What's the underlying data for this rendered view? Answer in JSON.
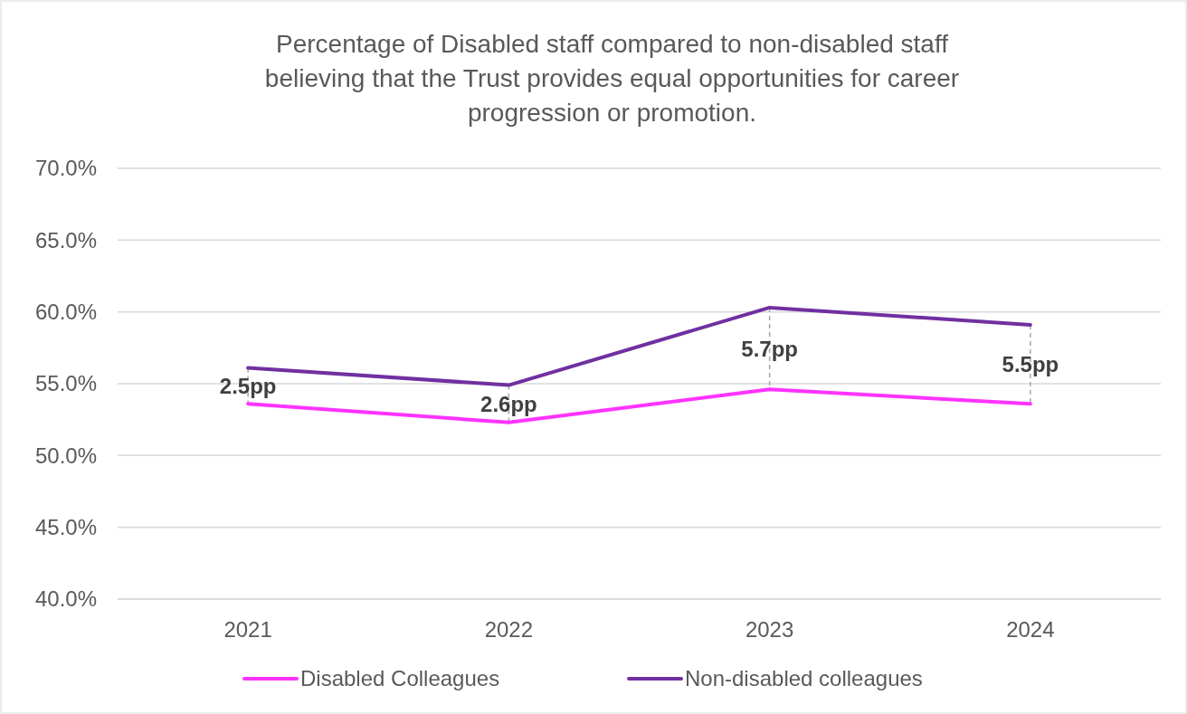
{
  "chart_data": {
    "type": "line",
    "title": "Percentage of Disabled staff compared to non-disabled staff believing that the Trust provides equal opportunities for career progression or promotion.",
    "categories": [
      "2021",
      "2022",
      "2023",
      "2024"
    ],
    "series": [
      {
        "name": "Disabled Colleagues",
        "color": "#ff33ff",
        "values": [
          53.6,
          52.3,
          54.6,
          53.6
        ]
      },
      {
        "name": "Non-disabled colleagues",
        "color": "#7030a0",
        "values": [
          56.1,
          54.9,
          60.3,
          59.1
        ]
      }
    ],
    "ylim": [
      40,
      70
    ],
    "yticks": [
      {
        "value": 40,
        "label": "40.0%"
      },
      {
        "value": 45,
        "label": "45.0%"
      },
      {
        "value": 50,
        "label": "50.0%"
      },
      {
        "value": 55,
        "label": "55.0%"
      },
      {
        "value": 60,
        "label": "60.0%"
      },
      {
        "value": 65,
        "label": "65.0%"
      },
      {
        "value": 70,
        "label": "70.0%"
      }
    ],
    "grid": "y",
    "legend": "bottom",
    "marker": "none",
    "line_style": "solid",
    "annotations": [
      "2.5pp",
      "2.6pp",
      "5.7pp",
      "5.5pp"
    ]
  }
}
